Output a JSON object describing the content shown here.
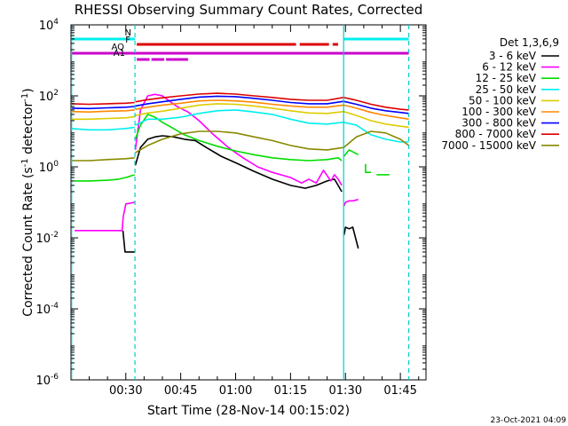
{
  "chart_data": {
    "type": "line",
    "title": "RHESSI Observing Summary Count Rates, Corrected",
    "xlabel": "Start Time (28-Nov-14 00:15:02)",
    "ylabel_parts": {
      "main": "Corrected Count Rate (s",
      "exp1": "-1",
      "mid": " detector",
      "exp2": "-1",
      "end": ")"
    },
    "timestamp": "23-Oct-2021 04:09",
    "x_units": "minutes after 00:00 UT, 28-Nov-14",
    "xlim": [
      15.03,
      112.0
    ],
    "ylim": [
      1e-06,
      10000.0
    ],
    "yscale": "log",
    "x_ticks": [
      {
        "value": 30,
        "label": "00:30"
      },
      {
        "value": 45,
        "label": "00:45"
      },
      {
        "value": 60,
        "label": "01:00"
      },
      {
        "value": 75,
        "label": "01:15"
      },
      {
        "value": 90,
        "label": "01:30"
      },
      {
        "value": 105,
        "label": "01:45"
      }
    ],
    "y_ticks": [
      {
        "value": 1e-06,
        "base": "10",
        "exp": "-6"
      },
      {
        "value": 0.0001,
        "base": "10",
        "exp": "-4"
      },
      {
        "value": 0.01,
        "base": "10",
        "exp": "-2"
      },
      {
        "value": 1,
        "base": "10",
        "exp": "0"
      },
      {
        "value": 100,
        "base": "10",
        "exp": "2"
      },
      {
        "value": 10000,
        "base": "10",
        "exp": "4"
      }
    ],
    "legend": {
      "placement": "right",
      "header": "Det 1,3,6,9",
      "entries": [
        {
          "label": "3 - 6 keV",
          "color": "#000000"
        },
        {
          "label": "6 - 12 keV",
          "color": "#ff00ff"
        },
        {
          "label": "12 - 25 keV",
          "color": "#00dd00"
        },
        {
          "label": "25 - 50 keV",
          "color": "#00eeee"
        },
        {
          "label": "50 - 100 keV",
          "color": "#ddcc00"
        },
        {
          "label": "100 - 300 keV",
          "color": "#ff8800"
        },
        {
          "label": "300 - 800 keV",
          "color": "#0000ff"
        },
        {
          "label": "800 - 7000 keV",
          "color": "#dd0000"
        },
        {
          "label": "7000 - 15000 keV",
          "color": "#888800"
        }
      ]
    },
    "night_intervals": [
      [
        15.03,
        32.5
      ],
      [
        89.5,
        112.0
      ]
    ],
    "vertical_lines": [
      {
        "x": 15.2,
        "style": "solid"
      },
      {
        "x": 32.5,
        "style": "dashed"
      },
      {
        "x": 89.5,
        "style": "solid"
      },
      {
        "x": 107.3,
        "style": "dashed"
      }
    ],
    "flags": [
      {
        "label": "N",
        "color": "#00eeee",
        "segments": [
          [
            15.03,
            32.5
          ],
          [
            89.5,
            107.3
          ]
        ]
      },
      {
        "label": "F",
        "color": "#dd0000",
        "segments": [
          [
            33.0,
            76.5
          ],
          [
            77.5,
            85.5
          ],
          [
            86.5,
            88.0
          ]
        ]
      },
      {
        "label": "AQ",
        "color": "#cc00cc",
        "segments": [
          [
            15.03,
            107.3
          ]
        ]
      },
      {
        "label": "A1",
        "color": "#cc00cc",
        "segments": [
          [
            33.0,
            36.5
          ],
          [
            37.0,
            40.5
          ],
          [
            41.0,
            47.0
          ]
        ]
      }
    ],
    "series": [
      {
        "name": "3 - 6 keV",
        "color": "#000000",
        "segments": [
          {
            "x": [
              29.2,
              29.8,
              32.4
            ],
            "y": [
              0.016,
              0.004,
              0.004
            ]
          },
          {
            "x": [
              32.6,
              34,
              36,
              38,
              40,
              43,
              46,
              49,
              52,
              56,
              60,
              65,
              70,
              75,
              79,
              82,
              85,
              87,
              88,
              89
            ],
            "y": [
              1.1,
              3.5,
              6,
              7,
              7.5,
              7,
              6,
              5.5,
              3.5,
              2,
              1.3,
              0.75,
              0.45,
              0.3,
              0.25,
              0.3,
              0.4,
              0.45,
              0.3,
              0.2
            ]
          },
          {
            "x": [
              89.6,
              90,
              91,
              92,
              93.5
            ],
            "y": [
              0.012,
              0.02,
              0.018,
              0.02,
              0.005
            ]
          }
        ]
      },
      {
        "name": "6 - 12 keV",
        "color": "#ff00ff",
        "segments": [
          {
            "x": [
              16,
              29,
              29.3,
              30,
              32.4
            ],
            "y": [
              0.016,
              0.016,
              0.04,
              0.09,
              0.1
            ]
          },
          {
            "x": [
              32.6,
              34,
              36,
              38,
              40,
              42,
              44,
              47,
              50,
              54,
              58,
              62,
              66,
              70,
              75,
              78,
              80,
              82,
              84,
              86,
              87,
              88,
              89
            ],
            "y": [
              3,
              40,
              100,
              110,
              100,
              70,
              50,
              35,
              20,
              8,
              3.5,
              1.8,
              1,
              0.7,
              0.5,
              0.35,
              0.45,
              0.35,
              0.8,
              0.4,
              0.6,
              0.45,
              0.3
            ]
          },
          {
            "x": [
              89.6,
              90,
              91,
              92,
              93.5
            ],
            "y": [
              0.08,
              0.1,
              0.11,
              0.11,
              0.12
            ]
          }
        ]
      },
      {
        "name": "12 - 25 keV",
        "color": "#00dd00",
        "segments": [
          {
            "x": [
              16,
              20,
              25,
              28,
              30,
              32.4
            ],
            "y": [
              0.4,
              0.4,
              0.42,
              0.45,
              0.5,
              0.6
            ]
          },
          {
            "x": [
              32.6,
              34,
              36,
              38,
              40,
              43,
              46,
              50,
              55,
              60,
              65,
              70,
              75,
              80,
              85,
              88,
              89
            ],
            "y": [
              6,
              15,
              30,
              25,
              18,
              12,
              8,
              5.5,
              3.8,
              2.8,
              2.2,
              1.8,
              1.6,
              1.5,
              1.6,
              1.8,
              1.5
            ]
          },
          {
            "x": [
              89.6,
              91,
              93.5
            ],
            "y": [
              2,
              3,
              2.2
            ]
          },
          {
            "x": [
              95.5,
              95.5,
              97
            ],
            "y": [
              1.2,
              0.7,
              0.7
            ]
          },
          {
            "x": [
              98.5,
              102
            ],
            "y": [
              0.6,
              0.6
            ]
          }
        ]
      },
      {
        "name": "25 - 50 keV",
        "color": "#00eeee",
        "segments": [
          {
            "x": [
              15.03,
              20,
              25,
              30,
              32.4
            ],
            "y": [
              12,
              11,
              11,
              12,
              13
            ]
          },
          {
            "x": [
              32.6,
              36,
              40,
              45,
              50,
              55,
              60,
              65,
              70,
              75,
              80,
              85,
              89.5,
              93,
              97,
              101,
              105,
              107.3
            ],
            "y": [
              15,
              22,
              22,
              25,
              32,
              38,
              40,
              35,
              30,
              22,
              17,
              16,
              18,
              15,
              8,
              6,
              5,
              5
            ]
          }
        ]
      },
      {
        "name": "50 - 100 keV",
        "color": "#ddcc00",
        "segments": [
          {
            "x": [
              15.03,
              20,
              25,
              30,
              32.4
            ],
            "y": [
              22,
              22,
              23,
              24,
              26
            ]
          },
          {
            "x": [
              32.6,
              36,
              40,
              45,
              50,
              55,
              60,
              65,
              70,
              75,
              80,
              85,
              89.5,
              93,
              97,
              101,
              105,
              107.3
            ],
            "y": [
              28,
              33,
              37,
              45,
              55,
              60,
              58,
              52,
              45,
              38,
              33,
              32,
              36,
              28,
              20,
              16,
              14,
              13
            ]
          }
        ]
      },
      {
        "name": "100 - 300 keV",
        "color": "#ff8800",
        "segments": [
          {
            "x": [
              15.03,
              20,
              25,
              30,
              32.4
            ],
            "y": [
              36,
              35,
              37,
              38,
              40
            ]
          },
          {
            "x": [
              32.6,
              36,
              40,
              45,
              50,
              55,
              60,
              65,
              70,
              75,
              80,
              85,
              89.5,
              93,
              97,
              101,
              105,
              107.3
            ],
            "y": [
              42,
              48,
              55,
              62,
              72,
              75,
              72,
              66,
              58,
              52,
              48,
              48,
              55,
              45,
              34,
              28,
              24,
              22
            ]
          }
        ]
      },
      {
        "name": "300 - 800 keV",
        "color": "#0000ff",
        "segments": [
          {
            "x": [
              15.03,
              20,
              25,
              30,
              32.4
            ],
            "y": [
              45,
              44,
              46,
              48,
              50
            ]
          },
          {
            "x": [
              32.6,
              36,
              40,
              45,
              50,
              55,
              60,
              65,
              70,
              75,
              80,
              85,
              89.5,
              93,
              97,
              101,
              105,
              107.3
            ],
            "y": [
              52,
              60,
              68,
              80,
              92,
              98,
              95,
              85,
              75,
              65,
              60,
              60,
              70,
              58,
              45,
              38,
              34,
              32
            ]
          }
        ]
      },
      {
        "name": "800 - 7000 keV",
        "color": "#dd0000",
        "segments": [
          {
            "x": [
              15.03,
              20,
              25,
              30,
              32.4
            ],
            "y": [
              60,
              58,
              60,
              62,
              65
            ]
          },
          {
            "x": [
              32.6,
              36,
              40,
              45,
              50,
              55,
              60,
              65,
              70,
              75,
              80,
              85,
              89.5,
              93,
              97,
              101,
              105,
              107.3
            ],
            "y": [
              68,
              78,
              88,
              100,
              112,
              118,
              112,
              100,
              90,
              80,
              75,
              75,
              90,
              75,
              58,
              48,
              42,
              40
            ]
          }
        ]
      },
      {
        "name": "7000 - 15000 keV",
        "color": "#888800",
        "segments": [
          {
            "x": [
              15.03,
              20,
              25,
              30,
              32.4
            ],
            "y": [
              1.5,
              1.5,
              1.6,
              1.7,
              1.8
            ]
          },
          {
            "x": [
              32.6,
              36,
              40,
              45,
              50,
              55,
              60,
              65,
              70,
              75,
              80,
              85,
              89.5,
              93,
              97,
              101,
              105,
              107.3
            ],
            "y": [
              2.5,
              4,
              6,
              8.5,
              10,
              10,
              9,
              7,
              5.5,
              4,
              3.2,
              3,
              3.5,
              7,
              10,
              9,
              6,
              4
            ]
          }
        ]
      }
    ]
  }
}
